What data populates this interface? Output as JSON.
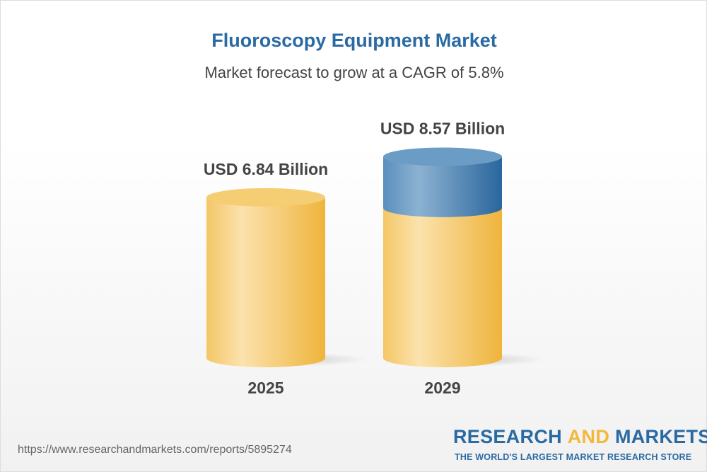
{
  "title": "Fluoroscopy Equipment Market",
  "subtitle": "Market forecast to grow at a CAGR of 5.8%",
  "chart_data": {
    "type": "bar",
    "categories": [
      "2025",
      "2029"
    ],
    "values": [
      6.84,
      8.57
    ],
    "data_labels": [
      "USD 6.84 Billion",
      "USD 8.57 Billion"
    ],
    "unit": "USD Billion",
    "colors": {
      "base": "#f2c05a",
      "growth": "#3d78ab"
    }
  },
  "footer": {
    "url": "https://www.researchandmarkets.com/reports/5895274",
    "brand_part1": "RESEARCH ",
    "brand_part2": "AND",
    "brand_part3": " MARKETS",
    "tagline": "THE WORLD'S LARGEST MARKET RESEARCH STORE"
  }
}
